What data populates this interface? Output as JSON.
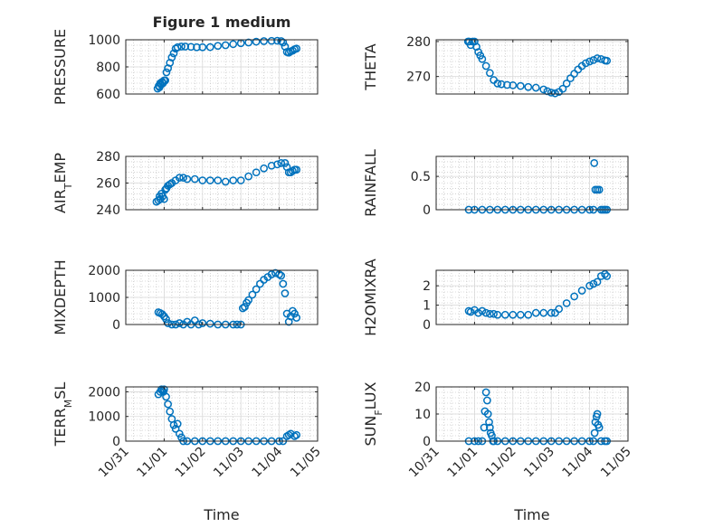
{
  "figure_title": "Figure 1 medium",
  "marker_color": "#0072bd",
  "x_ticks": [
    "10/31",
    "11/01",
    "11/02",
    "11/03",
    "11/04",
    "11/05"
  ],
  "xlabel": "Time",
  "chart_data": [
    {
      "type": "scatter",
      "title": "Figure 1 medium",
      "ylabel": "PRESSURE",
      "xlim": [
        0,
        5
      ],
      "ylim": [
        600,
        1000
      ],
      "yticks": [
        "600",
        "800",
        "1000"
      ],
      "grid": true,
      "series": [
        {
          "x": [
            0.83,
            0.86,
            0.88,
            0.9,
            0.92,
            0.95,
            0.97,
            1.0,
            1.03,
            1.06,
            1.1,
            1.15,
            1.2,
            1.25,
            1.3,
            1.35,
            1.45,
            1.55,
            1.7,
            1.85,
            2.0,
            2.2,
            2.4,
            2.6,
            2.8,
            3.0,
            3.2,
            3.4,
            3.6,
            3.8,
            3.95,
            4.05,
            4.1,
            4.15,
            4.2,
            4.25,
            4.3,
            4.35,
            4.4,
            4.45
          ],
          "y": [
            640,
            660,
            650,
            680,
            670,
            690,
            680,
            700,
            700,
            760,
            790,
            830,
            870,
            900,
            935,
            945,
            950,
            950,
            948,
            945,
            945,
            946,
            955,
            960,
            968,
            975,
            980,
            986,
            990,
            992,
            993,
            990,
            980,
            950,
            910,
            905,
            915,
            920,
            930,
            935
          ]
        }
      ]
    },
    {
      "type": "scatter",
      "ylabel": "THETA",
      "xlim": [
        0,
        5
      ],
      "ylim": [
        265,
        280.5
      ],
      "yticks": [
        "270",
        "280"
      ],
      "grid": true,
      "series": [
        {
          "x": [
            0.83,
            0.86,
            0.9,
            0.95,
            1.0,
            1.05,
            1.1,
            1.15,
            1.2,
            1.3,
            1.4,
            1.5,
            1.6,
            1.7,
            1.85,
            2.0,
            2.2,
            2.4,
            2.6,
            2.8,
            2.9,
            3.0,
            3.1,
            3.2,
            3.3,
            3.4,
            3.5,
            3.6,
            3.7,
            3.8,
            3.9,
            4.0,
            4.1,
            4.2,
            4.3,
            4.4,
            4.45
          ],
          "y": [
            280,
            280,
            279,
            280,
            280,
            278.5,
            277,
            276,
            275,
            273,
            271,
            269,
            268,
            267.8,
            267.6,
            267.5,
            267.3,
            267,
            266.8,
            266.3,
            265.8,
            265.4,
            265.2,
            265.6,
            266.5,
            268,
            269.5,
            270.8,
            272,
            273,
            273.8,
            274.3,
            274.7,
            275.2,
            275,
            274.6,
            274.5
          ]
        }
      ]
    },
    {
      "type": "scatter",
      "ylabel": "AIR_TEMP",
      "xlim": [
        0,
        5
      ],
      "ylim": [
        240,
        280
      ],
      "yticks": [
        "240",
        "260",
        "280"
      ],
      "grid": true,
      "series": [
        {
          "x": [
            0.8,
            0.85,
            0.88,
            0.9,
            0.93,
            0.96,
            1.0,
            1.03,
            1.06,
            1.1,
            1.15,
            1.2,
            1.3,
            1.4,
            1.5,
            1.6,
            1.8,
            2.0,
            2.2,
            2.4,
            2.6,
            2.8,
            3.0,
            3.2,
            3.4,
            3.6,
            3.8,
            3.95,
            4.05,
            4.15,
            4.2,
            4.25,
            4.3,
            4.35,
            4.4,
            4.45
          ],
          "y": [
            246,
            247,
            250,
            248,
            252,
            250,
            248,
            255,
            256,
            258,
            259,
            260,
            262,
            264,
            264,
            263,
            263,
            262,
            262,
            262,
            261,
            262,
            262,
            265,
            268,
            271,
            273,
            274,
            275,
            275,
            272,
            268,
            268,
            269,
            270,
            270
          ]
        }
      ]
    },
    {
      "type": "scatter",
      "ylabel": "RAINFALL",
      "xlim": [
        0,
        5
      ],
      "ylim": [
        0,
        0.8
      ],
      "yticks": [
        "0",
        "0.5"
      ],
      "grid": true,
      "series": [
        {
          "x": [
            0.85,
            1.0,
            1.2,
            1.4,
            1.6,
            1.8,
            2.0,
            2.2,
            2.4,
            2.6,
            2.8,
            3.0,
            3.2,
            3.4,
            3.6,
            3.8,
            4.0,
            4.1,
            4.12,
            4.15,
            4.2,
            4.25,
            4.3,
            4.35,
            4.4,
            4.45
          ],
          "y": [
            0,
            0,
            0,
            0,
            0,
            0,
            0,
            0,
            0,
            0,
            0,
            0,
            0,
            0,
            0,
            0,
            0,
            0,
            0.7,
            0.3,
            0.3,
            0.3,
            0,
            0,
            0,
            0
          ]
        }
      ]
    },
    {
      "type": "scatter",
      "ylabel": "MIXDEPTH",
      "xlim": [
        0,
        5
      ],
      "ylim": [
        0,
        2000
      ],
      "yticks": [
        "0",
        "1000",
        "2000"
      ],
      "grid": true,
      "series": [
        {
          "x": [
            0.85,
            0.9,
            0.95,
            1.0,
            1.05,
            1.1,
            1.2,
            1.3,
            1.4,
            1.5,
            1.6,
            1.7,
            1.8,
            1.9,
            2.0,
            2.2,
            2.4,
            2.6,
            2.8,
            2.9,
            3.0,
            3.05,
            3.1,
            3.15,
            3.2,
            3.3,
            3.4,
            3.5,
            3.6,
            3.7,
            3.8,
            3.9,
            4.0,
            4.05,
            4.1,
            4.15,
            4.2,
            4.25,
            4.3,
            4.35,
            4.4,
            4.45
          ],
          "y": [
            450,
            420,
            380,
            300,
            200,
            50,
            0,
            0,
            50,
            0,
            100,
            0,
            150,
            0,
            50,
            30,
            0,
            0,
            0,
            0,
            0,
            600,
            650,
            800,
            900,
            1100,
            1300,
            1500,
            1650,
            1750,
            1850,
            1900,
            1850,
            1800,
            1500,
            1150,
            400,
            100,
            300,
            500,
            400,
            250
          ]
        }
      ]
    },
    {
      "type": "scatter",
      "ylabel": "H2OMIXRA",
      "xlim": [
        0,
        5
      ],
      "ylim": [
        0,
        2.8
      ],
      "yticks": [
        "0",
        "1",
        "2"
      ],
      "grid": true,
      "series": [
        {
          "x": [
            0.85,
            0.9,
            1.0,
            1.1,
            1.2,
            1.3,
            1.4,
            1.5,
            1.6,
            1.8,
            2.0,
            2.2,
            2.4,
            2.6,
            2.8,
            3.0,
            3.1,
            3.2,
            3.4,
            3.6,
            3.8,
            4.0,
            4.1,
            4.2,
            4.3,
            4.4,
            4.45
          ],
          "y": [
            0.7,
            0.65,
            0.75,
            0.6,
            0.7,
            0.6,
            0.55,
            0.55,
            0.5,
            0.5,
            0.5,
            0.5,
            0.5,
            0.6,
            0.6,
            0.6,
            0.6,
            0.8,
            1.1,
            1.45,
            1.75,
            2.0,
            2.1,
            2.2,
            2.5,
            2.6,
            2.5
          ]
        }
      ]
    },
    {
      "type": "scatter",
      "ylabel": "TERR_MSL",
      "xlim": [
        0,
        5
      ],
      "ylim": [
        0,
        2200
      ],
      "yticks": [
        "0",
        "1000",
        "2000"
      ],
      "grid": true,
      "series": [
        {
          "x": [
            0.85,
            0.9,
            0.93,
            0.95,
            0.98,
            1.0,
            1.05,
            1.1,
            1.15,
            1.2,
            1.25,
            1.3,
            1.35,
            1.4,
            1.45,
            1.5,
            1.6,
            1.8,
            2.0,
            2.2,
            2.4,
            2.6,
            2.8,
            3.0,
            3.2,
            3.4,
            3.6,
            3.8,
            4.0,
            4.1,
            4.2,
            4.25,
            4.3,
            4.4,
            4.45
          ],
          "y": [
            1900,
            2000,
            2100,
            2050,
            2000,
            2100,
            1800,
            1500,
            1200,
            900,
            650,
            500,
            700,
            300,
            150,
            0,
            0,
            0,
            0,
            0,
            0,
            0,
            0,
            0,
            0,
            0,
            0,
            0,
            0,
            0,
            200,
            250,
            300,
            200,
            250
          ]
        }
      ]
    },
    {
      "type": "scatter",
      "ylabel": "SUN_FLUX",
      "xlim": [
        0,
        5
      ],
      "ylim": [
        0,
        20
      ],
      "yticks": [
        "0",
        "10",
        "20"
      ],
      "grid": true,
      "series": [
        {
          "x": [
            0.85,
            1.0,
            1.1,
            1.2,
            1.25,
            1.27,
            1.3,
            1.33,
            1.35,
            1.38,
            1.4,
            1.42,
            1.45,
            1.48,
            1.5,
            1.6,
            1.8,
            2.0,
            2.2,
            2.4,
            2.6,
            2.8,
            3.0,
            3.2,
            3.4,
            3.6,
            3.8,
            4.0,
            4.1,
            4.13,
            4.15,
            4.18,
            4.2,
            4.22,
            4.25,
            4.3,
            4.4,
            4.45
          ],
          "y": [
            0,
            0,
            0,
            0,
            5,
            11,
            18,
            15,
            10,
            7,
            5,
            3,
            2,
            0,
            0,
            0,
            0,
            0,
            0,
            0,
            0,
            0,
            0,
            0,
            0,
            0,
            0,
            0,
            0,
            3,
            7,
            9,
            10,
            6,
            5,
            0,
            0,
            0
          ]
        }
      ]
    }
  ]
}
